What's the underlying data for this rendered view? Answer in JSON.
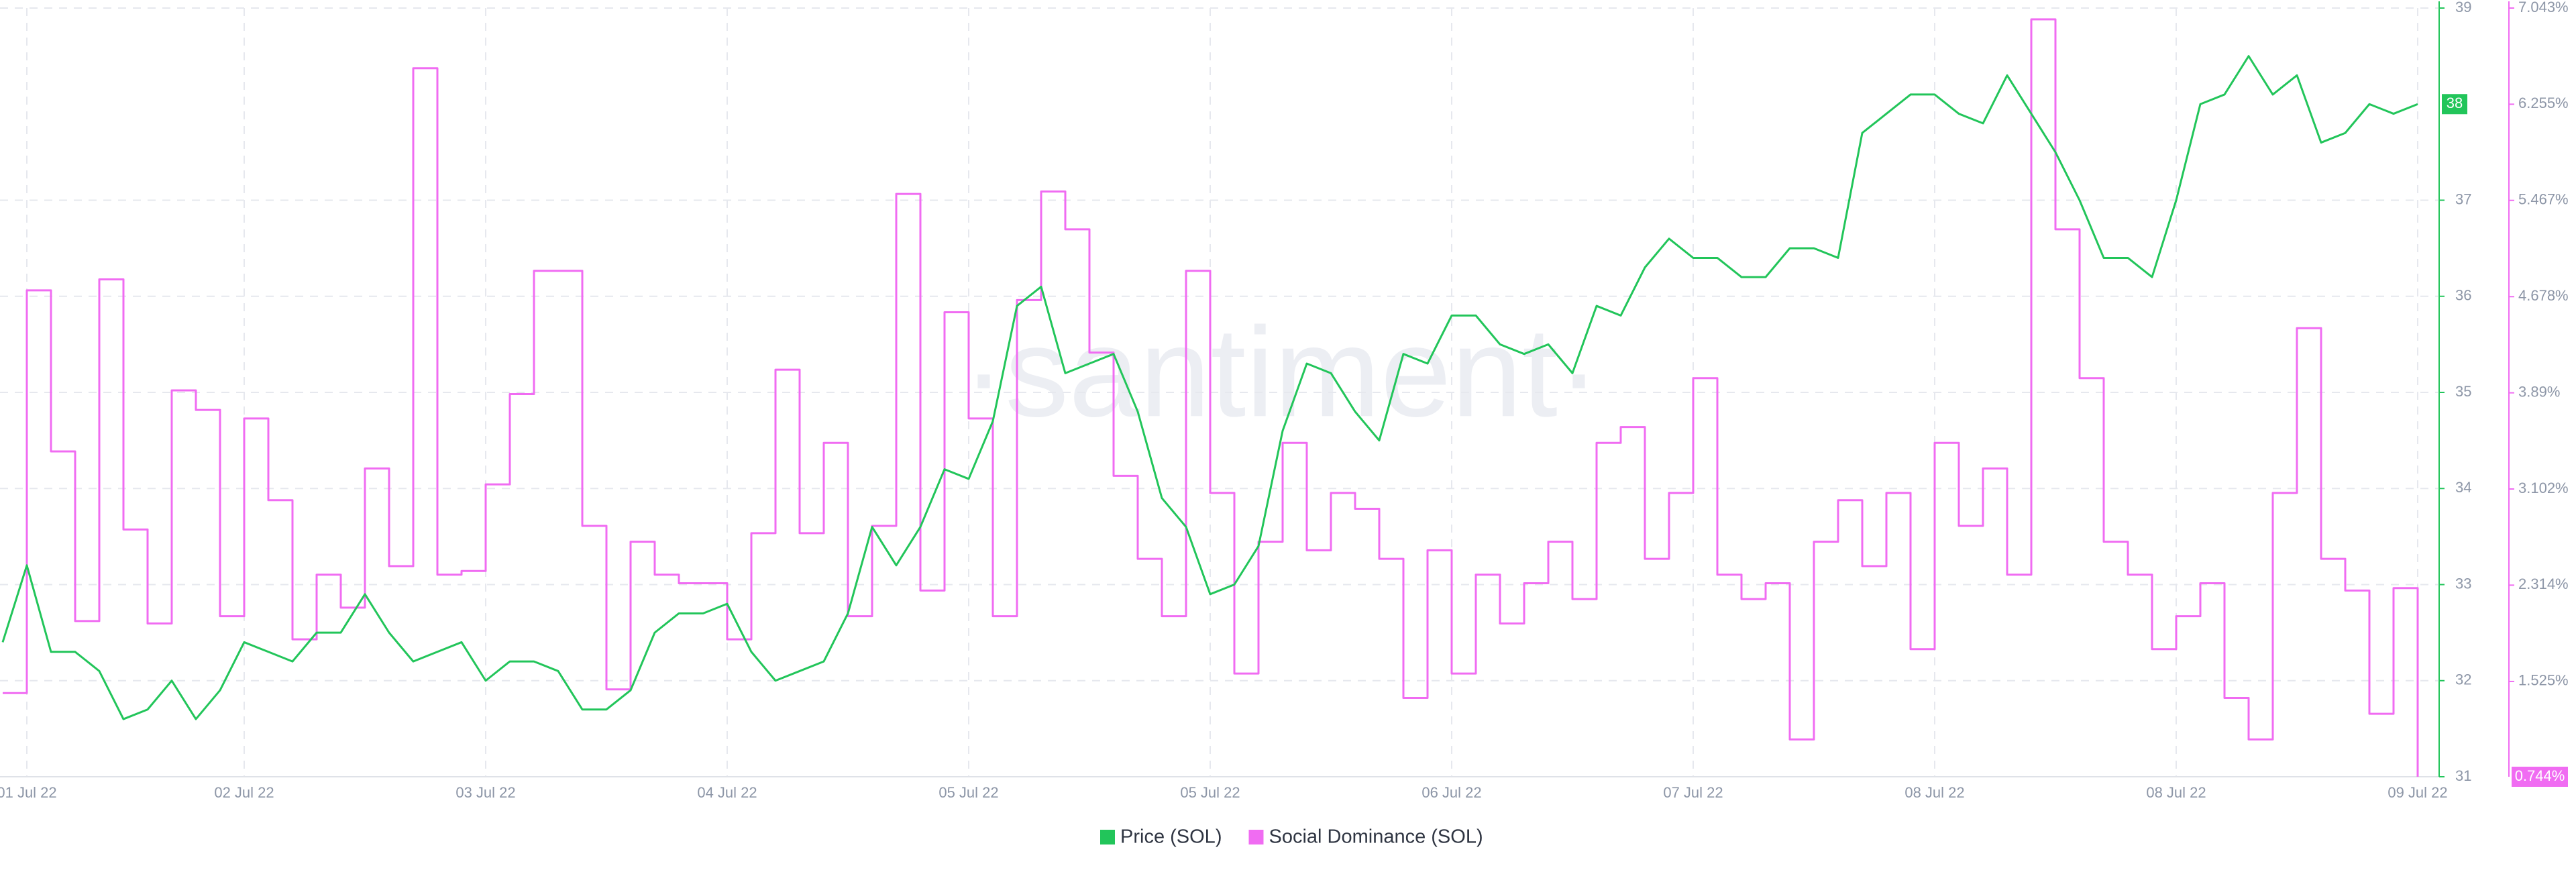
{
  "chart_data": {
    "type": "line",
    "watermark": "·santiment·",
    "grid": true,
    "legend": "bottom",
    "categories": [
      null,
      "01 Jul 22",
      null,
      null,
      null,
      null,
      null,
      null,
      null,
      null,
      "02 Jul 22",
      null,
      null,
      null,
      null,
      null,
      null,
      null,
      null,
      null,
      "03 Jul 22",
      null,
      null,
      null,
      null,
      null,
      null,
      null,
      null,
      null,
      "04 Jul 22",
      null,
      null,
      null,
      null,
      null,
      null,
      null,
      null,
      null,
      "05 Jul 22",
      null,
      null,
      null,
      null,
      null,
      null,
      null,
      null,
      null,
      "05 Jul 22",
      null,
      null,
      null,
      null,
      null,
      null,
      null,
      null,
      null,
      "06 Jul 22",
      null,
      null,
      null,
      null,
      null,
      null,
      null,
      null,
      null,
      "07 Jul 22",
      null,
      null,
      null,
      null,
      null,
      null,
      null,
      null,
      null,
      "08 Jul 22",
      null,
      null,
      null,
      null,
      null,
      null,
      null,
      null,
      null,
      "08 Jul 22",
      null,
      null,
      null,
      null,
      null,
      null,
      null,
      null,
      null,
      "09 Jul 22"
    ],
    "ylim": [
      31,
      39
    ],
    "yticks": [
      31,
      32,
      33,
      34,
      35,
      36,
      37,
      39
    ],
    "y2lim": [
      0.744,
      7.043
    ],
    "y2ticks": [
      {
        "value": 1.525,
        "label": "1.525%"
      },
      {
        "value": 2.314,
        "label": "2.314%"
      },
      {
        "value": 3.102,
        "label": "3.102%"
      },
      {
        "value": 3.89,
        "label": "3.89%"
      },
      {
        "value": 4.678,
        "label": "4.678%"
      },
      {
        "value": 5.467,
        "label": "5.467%"
      },
      {
        "value": 6.255,
        "label": "6.255%"
      },
      {
        "value": 7.043,
        "label": "7.043%"
      }
    ],
    "series": [
      {
        "name": "Price (SOL)",
        "color": "#22c55a",
        "axis": "y",
        "last_label": "38",
        "values": [
          32.4,
          33.2,
          32.3,
          32.3,
          32.1,
          31.6,
          31.7,
          32.0,
          31.6,
          31.9,
          32.4,
          32.3,
          32.2,
          32.5,
          32.5,
          32.9,
          32.5,
          32.2,
          32.3,
          32.4,
          32.0,
          32.2,
          32.2,
          32.1,
          31.7,
          31.7,
          31.9,
          32.5,
          32.7,
          32.7,
          32.8,
          32.3,
          32.0,
          32.1,
          32.2,
          32.7,
          33.6,
          33.2,
          33.6,
          34.2,
          34.1,
          34.7,
          35.9,
          36.1,
          35.2,
          35.3,
          35.4,
          34.8,
          33.9,
          33.6,
          32.9,
          33.0,
          33.4,
          34.6,
          35.3,
          35.2,
          34.8,
          34.5,
          35.4,
          35.3,
          35.8,
          35.8,
          35.5,
          35.4,
          35.5,
          35.2,
          35.9,
          35.8,
          36.3,
          36.6,
          36.4,
          36.4,
          36.2,
          36.2,
          36.5,
          36.5,
          36.4,
          37.7,
          37.9,
          38.1,
          38.1,
          37.9,
          37.8,
          38.3,
          37.9,
          37.5,
          37.0,
          36.4,
          36.4,
          36.2,
          37.0,
          38.0,
          38.1,
          38.5,
          38.1,
          38.3,
          37.6,
          37.7,
          38.0,
          37.9,
          38.0
        ]
      },
      {
        "name": "Social Dominance (SOL)",
        "color": "#f06cf2",
        "axis": "y2",
        "last_label": "0.744%",
        "values": [
          1.43,
          4.73,
          3.41,
          2.02,
          4.82,
          2.77,
          2.0,
          3.91,
          3.75,
          2.06,
          3.68,
          3.01,
          1.87,
          2.4,
          2.13,
          3.27,
          2.47,
          6.55,
          2.4,
          2.43,
          3.14,
          3.88,
          4.89,
          4.89,
          2.8,
          1.46,
          2.67,
          2.4,
          2.33,
          2.33,
          1.87,
          2.74,
          4.08,
          2.74,
          3.48,
          2.06,
          2.8,
          5.52,
          2.27,
          4.55,
          3.68,
          2.06,
          4.65,
          5.54,
          5.23,
          4.22,
          3.21,
          2.53,
          2.06,
          4.89,
          3.07,
          1.59,
          2.67,
          3.48,
          2.6,
          3.07,
          2.94,
          2.53,
          1.39,
          2.6,
          1.59,
          2.4,
          2.0,
          2.33,
          2.67,
          2.2,
          3.48,
          3.61,
          2.53,
          3.07,
          4.01,
          2.4,
          2.2,
          2.33,
          1.05,
          2.67,
          3.01,
          2.47,
          3.07,
          1.79,
          3.48,
          2.8,
          3.27,
          2.4,
          6.95,
          5.23,
          4.01,
          2.67,
          2.4,
          1.79,
          2.06,
          2.33,
          1.39,
          1.05,
          3.07,
          4.42,
          2.53,
          2.27,
          1.26,
          2.29,
          0.744
        ]
      }
    ]
  }
}
